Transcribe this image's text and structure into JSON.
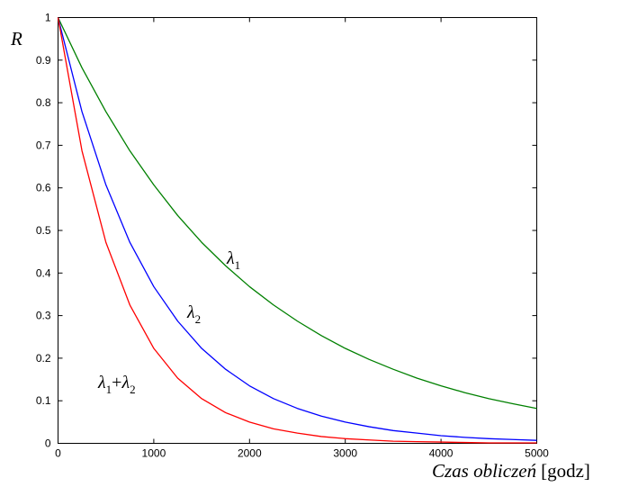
{
  "chart_data": {
    "type": "line",
    "ylabel": "R",
    "xlabel_italic": "Czas obliczeń",
    "xlabel_unit": "[godz]",
    "xlim": [
      0,
      5000
    ],
    "ylim": [
      0,
      1
    ],
    "xticks": [
      0,
      1000,
      2000,
      3000,
      4000,
      5000
    ],
    "yticks": [
      0,
      0.1,
      0.2,
      0.3,
      0.4,
      0.5,
      0.6,
      0.7,
      0.8,
      0.9,
      1
    ],
    "grid": false,
    "colors": {
      "green": "#008000",
      "blue": "#0000ff",
      "red": "#ff0000"
    },
    "series": [
      {
        "name": "λ1",
        "color": "#008000",
        "x": [
          0,
          250,
          500,
          750,
          1000,
          1250,
          1500,
          1750,
          2000,
          2250,
          2500,
          2750,
          3000,
          3250,
          3500,
          3750,
          4000,
          4250,
          4500,
          4750,
          5000
        ],
        "y": [
          1.0,
          0.882,
          0.779,
          0.687,
          0.607,
          0.535,
          0.472,
          0.417,
          0.368,
          0.325,
          0.287,
          0.253,
          0.223,
          0.197,
          0.174,
          0.153,
          0.135,
          0.119,
          0.105,
          0.093,
          0.082
        ]
      },
      {
        "name": "λ2",
        "color": "#0000ff",
        "x": [
          0,
          250,
          500,
          750,
          1000,
          1250,
          1500,
          1750,
          2000,
          2250,
          2500,
          2750,
          3000,
          3250,
          3500,
          3750,
          4000,
          4250,
          4500,
          4750,
          5000
        ],
        "y": [
          1.0,
          0.779,
          0.607,
          0.472,
          0.368,
          0.287,
          0.223,
          0.174,
          0.135,
          0.105,
          0.082,
          0.064,
          0.05,
          0.039,
          0.03,
          0.024,
          0.018,
          0.014,
          0.011,
          0.009,
          0.007
        ]
      },
      {
        "name": "λ1+λ2",
        "color": "#ff0000",
        "x": [
          0,
          250,
          500,
          750,
          1000,
          1250,
          1500,
          1750,
          2000,
          2250,
          2500,
          2750,
          3000,
          3250,
          3500,
          3750,
          4000,
          4250,
          4500,
          4750,
          5000
        ],
        "y": [
          1.0,
          0.687,
          0.472,
          0.325,
          0.223,
          0.153,
          0.105,
          0.072,
          0.05,
          0.034,
          0.024,
          0.016,
          0.011,
          0.008,
          0.005,
          0.004,
          0.003,
          0.002,
          0.001,
          0.001,
          0.001
        ]
      }
    ]
  }
}
